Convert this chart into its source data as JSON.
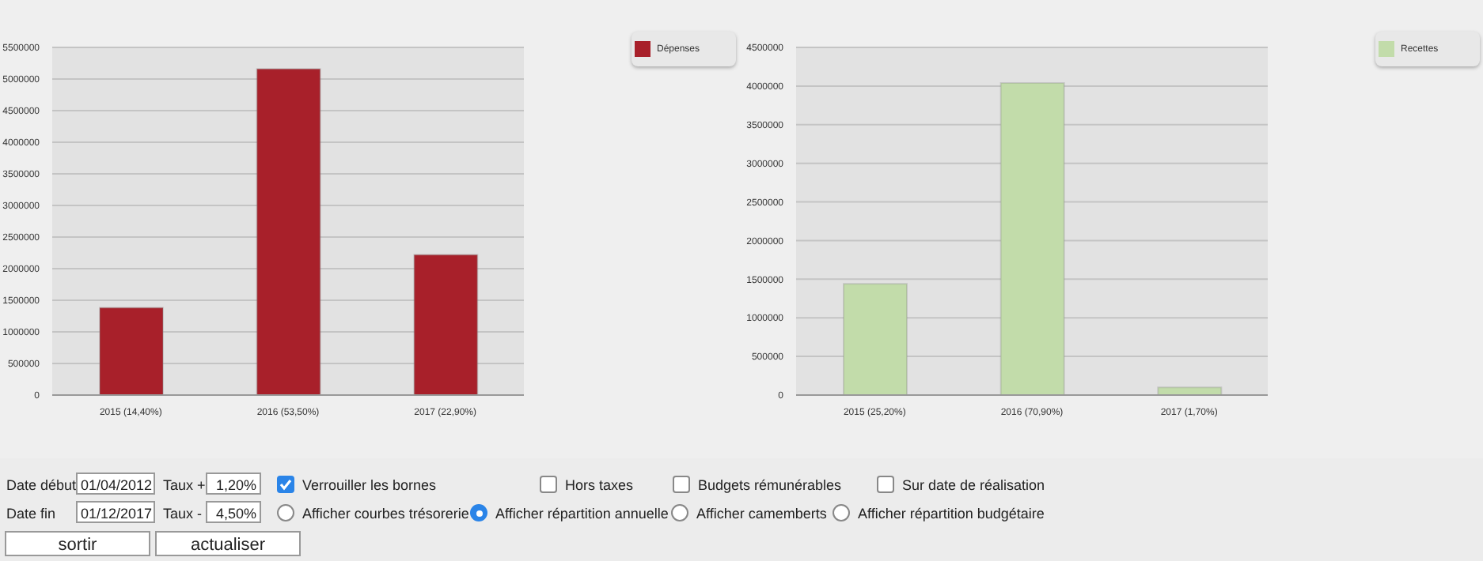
{
  "chart_data": [
    {
      "type": "bar",
      "categories": [
        "2015 (14,40%)",
        "2016 (53,50%)",
        "2017 (22,90%)"
      ],
      "series": [
        {
          "name": "Dépenses",
          "color": "#a8202a",
          "values": [
            1380000,
            5160000,
            2220000
          ]
        }
      ],
      "ylim": [
        0,
        5500000
      ],
      "yticks": [
        0,
        500000,
        1000000,
        1500000,
        2000000,
        2500000,
        3000000,
        3500000,
        4000000,
        4500000,
        5000000,
        5500000
      ],
      "grid": "y",
      "legend": "top right"
    },
    {
      "type": "bar",
      "categories": [
        "2015 (25,20%)",
        "2016 (70,90%)",
        "2017 (1,70%)"
      ],
      "series": [
        {
          "name": "Recettes",
          "color": "#c2dcaa",
          "values": [
            1440000,
            4040000,
            100000
          ]
        }
      ],
      "ylim": [
        0,
        4500000
      ],
      "yticks": [
        0,
        500000,
        1000000,
        1500000,
        2000000,
        2500000,
        3000000,
        3500000,
        4000000,
        4500000
      ],
      "grid": "y",
      "legend": "top right"
    },
    {
      "type": "other",
      "annotations": [
        "Date début",
        "01/04/2012",
        "Taux +",
        "1,20%",
        "Verrouiller les bornes",
        "Hors taxes",
        "Budgets rémunérables",
        "Sur date de réalisation",
        "Date fin",
        "01/12/2017",
        "Taux -",
        "4,50%",
        "Afficher courbes trésorerie",
        "Afficher répartition annuelle",
        "Afficher camemberts",
        "Afficher répartition budgétaire",
        "sortir",
        "actualiser"
      ]
    }
  ]
}
